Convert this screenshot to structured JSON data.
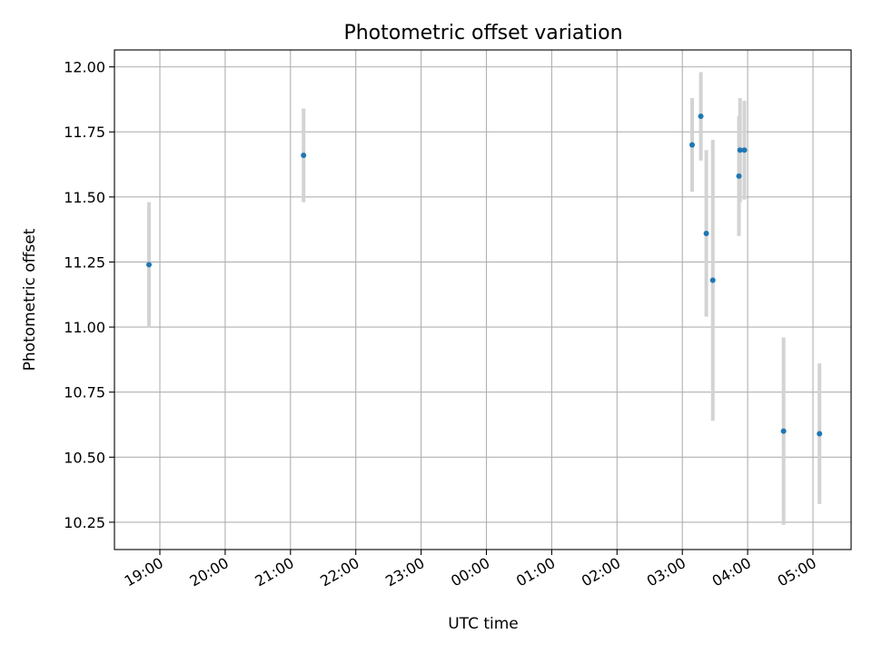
{
  "chart_data": {
    "type": "scatter",
    "title": "Photometric offset variation",
    "xlabel": "UTC time",
    "ylabel": "Photometric offset",
    "x_ticks": [
      "19:00",
      "20:00",
      "21:00",
      "22:00",
      "23:00",
      "00:00",
      "01:00",
      "02:00",
      "03:00",
      "04:00",
      "05:00"
    ],
    "y_ticks": [
      "10.25",
      "10.50",
      "10.75",
      "11.00",
      "11.25",
      "11.50",
      "11.75",
      "12.00"
    ],
    "ylim": [
      10.145,
      12.065
    ],
    "grid": true,
    "colors": {
      "point": "#1f77b4",
      "errorbar": "#d3d3d3"
    },
    "points": [
      {
        "time": "18:50",
        "y": 11.24,
        "err": 0.24
      },
      {
        "time": "21:12",
        "y": 11.66,
        "err": 0.18
      },
      {
        "time": "03:09",
        "y": 11.7,
        "err": 0.18
      },
      {
        "time": "03:17",
        "y": 11.81,
        "err": 0.17
      },
      {
        "time": "03:22",
        "y": 11.36,
        "err": 0.32
      },
      {
        "time": "03:28",
        "y": 11.18,
        "err": 0.54
      },
      {
        "time": "03:52",
        "y": 11.58,
        "err": 0.23
      },
      {
        "time": "03:53",
        "y": 11.68,
        "err": 0.2
      },
      {
        "time": "03:57",
        "y": 11.68,
        "err": 0.19
      },
      {
        "time": "04:33",
        "y": 10.6,
        "err": 0.36
      },
      {
        "time": "05:06",
        "y": 10.59,
        "err": 0.27
      }
    ]
  }
}
